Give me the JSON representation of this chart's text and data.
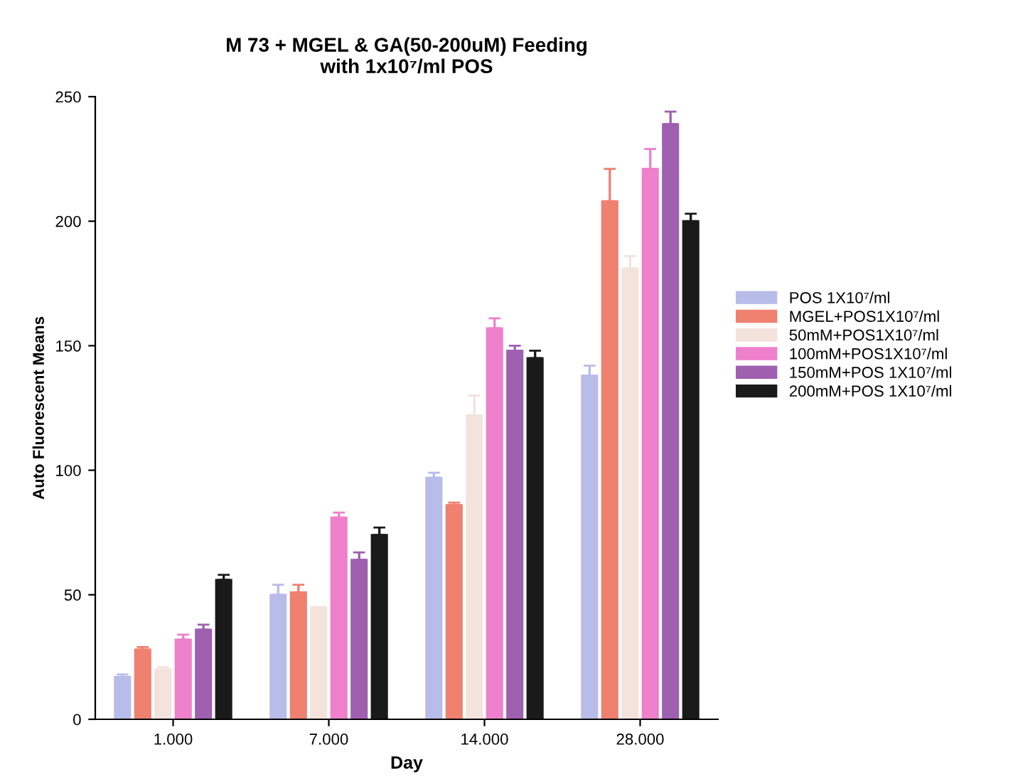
{
  "chart_data": {
    "type": "bar",
    "title": "M 73 + MGEL & GA(50-200uM) Feeding\nwith 1x10⁷/ml POS",
    "xlabel": "Day",
    "ylabel": "Auto Fluorescent Means",
    "categories": [
      "1.000",
      "7.000",
      "14.000",
      "28.000"
    ],
    "series": [
      {
        "name": "POS 1X10⁷/ml",
        "color": "#b8bce8",
        "values": [
          17,
          50,
          97,
          138
        ],
        "errors": [
          [
            17,
            18
          ],
          [
            50,
            54
          ],
          [
            97,
            99
          ],
          [
            138,
            142
          ]
        ]
      },
      {
        "name": "MGEL+POS1X10⁷/ml",
        "color": "#f08070",
        "values": [
          28,
          51,
          86,
          208
        ],
        "errors": [
          [
            28,
            29
          ],
          [
            51,
            54
          ],
          [
            86,
            87
          ],
          [
            208,
            221
          ]
        ]
      },
      {
        "name": "50mM+POS1X10⁷/ml",
        "color": "#f3e3dc",
        "values": [
          20,
          45,
          122,
          181
        ],
        "errors": [
          [
            20,
            21
          ],
          [
            45,
            45
          ],
          [
            122,
            130
          ],
          [
            181,
            186
          ]
        ]
      },
      {
        "name": "100mM+POS1X10⁷/ml",
        "color": "#ee80cc",
        "values": [
          32,
          81,
          157,
          221
        ],
        "errors": [
          [
            32,
            34
          ],
          [
            81,
            83
          ],
          [
            157,
            161
          ],
          [
            221,
            229
          ]
        ]
      },
      {
        "name": "150mM+POS 1X10⁷/ml",
        "color": "#a060b0",
        "values": [
          36,
          64,
          148,
          239
        ],
        "errors": [
          [
            36,
            38
          ],
          [
            64,
            67
          ],
          [
            148,
            150
          ],
          [
            239,
            244
          ]
        ]
      },
      {
        "name": "200mM+POS 1X10⁷/ml",
        "color": "#1a1a1a",
        "values": [
          56,
          74,
          145,
          200
        ],
        "errors": [
          [
            56,
            58
          ],
          [
            74,
            77
          ],
          [
            145,
            148
          ],
          [
            200,
            203
          ]
        ]
      }
    ],
    "ylim": [
      0,
      250
    ],
    "yticks": [
      0,
      50,
      100,
      150,
      200,
      250
    ],
    "grid": false,
    "legend": "right"
  }
}
